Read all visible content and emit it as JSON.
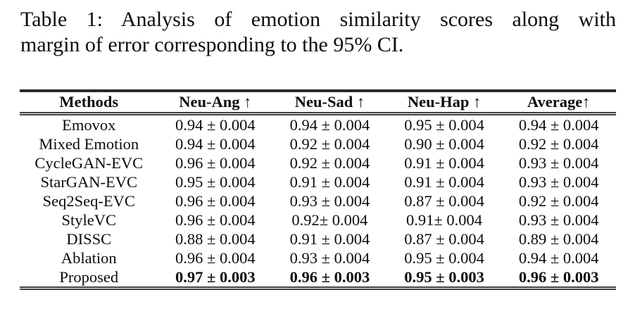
{
  "caption": {
    "line1": "Table 1: Analysis of emotion similarity scores along with",
    "line2": "margin of error corresponding to the 95% CI."
  },
  "table": {
    "columns": [
      "Methods",
      "Neu-Ang ↑",
      "Neu-Sad ↑",
      "Neu-Hap ↑",
      "Average↑"
    ],
    "rows": [
      {
        "method": "Emovox",
        "values": [
          "0.94 ± 0.004",
          "0.94 ± 0.004",
          "0.95 ± 0.004",
          "0.94 ± 0.004"
        ],
        "bold": false
      },
      {
        "method": "Mixed Emotion",
        "values": [
          "0.94 ± 0.004",
          "0.92 ± 0.004",
          "0.90 ± 0.004",
          "0.92 ± 0.004"
        ],
        "bold": false
      },
      {
        "method": "CycleGAN-EVC",
        "values": [
          "0.96 ± 0.004",
          "0.92 ± 0.004",
          "0.91 ± 0.004",
          "0.93 ± 0.004"
        ],
        "bold": false
      },
      {
        "method": "StarGAN-EVC",
        "values": [
          "0.95 ± 0.004",
          "0.91 ± 0.004",
          "0.91 ± 0.004",
          "0.93 ± 0.004"
        ],
        "bold": false
      },
      {
        "method": "Seq2Seq-EVC",
        "values": [
          "0.96 ± 0.004",
          "0.93 ± 0.004",
          "0.87 ± 0.004",
          "0.92 ± 0.004"
        ],
        "bold": false
      },
      {
        "method": "StyleVC",
        "values": [
          "0.96 ± 0.004",
          "0.92± 0.004",
          "0.91± 0.004",
          "0.93 ± 0.004"
        ],
        "bold": false
      },
      {
        "method": "DISSC",
        "values": [
          "0.88 ± 0.004",
          "0.91 ± 0.004",
          "0.87 ± 0.004",
          "0.89 ± 0.004"
        ],
        "bold": false
      },
      {
        "method": "Ablation",
        "values": [
          "0.96 ± 0.004",
          "0.93 ± 0.004",
          "0.95 ± 0.004",
          "0.94 ± 0.004"
        ],
        "bold": false
      },
      {
        "method": "Proposed",
        "values": [
          "0.97 ± 0.003",
          "0.96 ± 0.003",
          "0.95 ± 0.003",
          "0.96 ± 0.003"
        ],
        "bold": true
      }
    ]
  },
  "colors": {
    "text": "#0d0d0d",
    "rule": "#3f3f3f",
    "background": "#ffffff"
  }
}
